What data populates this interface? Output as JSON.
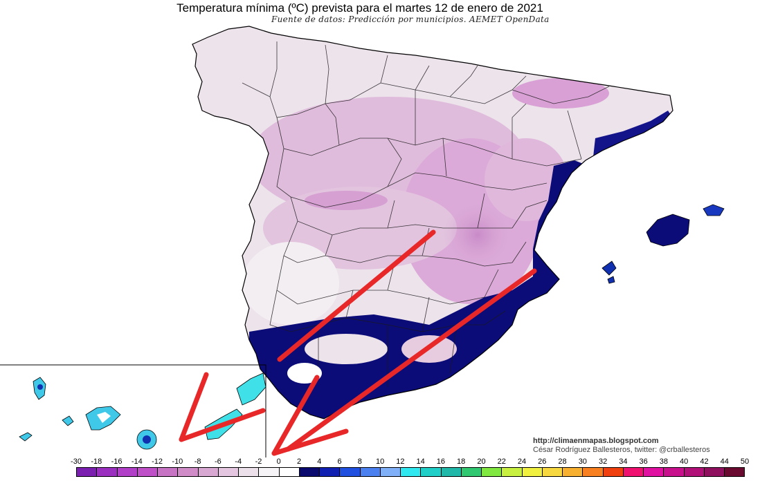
{
  "title": "Temperatura mínima (ºC) prevista para el martes 12 de enero de 2021",
  "subtitle": "Fuente de datos: Predicción por municipios. AEMET OpenData",
  "credit_site": "http://climaenmapas.blogspot.com",
  "credit_author": "César Rodríguez Ballesteros, twitter: @crballesteros",
  "legend": {
    "ticks": [
      "-30",
      "-18",
      "-16",
      "-14",
      "-12",
      "-10",
      "-8",
      "-6",
      "-4",
      "-2",
      "0",
      "2",
      "4",
      "6",
      "8",
      "10",
      "12",
      "14",
      "16",
      "18",
      "20",
      "22",
      "24",
      "26",
      "28",
      "30",
      "32",
      "34",
      "36",
      "38",
      "40",
      "42",
      "44",
      "50"
    ],
    "colors": [
      "#7a1fb0",
      "#9b30c0",
      "#b23fc8",
      "#c050c8",
      "#c874c4",
      "#d08cc6",
      "#d8a8d2",
      "#e4c6e0",
      "#ece0ea",
      "#f6f4f6",
      "#ffffff",
      "#0a0a6e",
      "#1020b0",
      "#2050e0",
      "#4a80f0",
      "#80b0f8",
      "#30e8f0",
      "#20d0c8",
      "#20b8a8",
      "#30c870",
      "#80e840",
      "#c8f040",
      "#f0f040",
      "#f8d840",
      "#f8b030",
      "#f88020",
      "#f04010",
      "#f01070",
      "#e010a0",
      "#c8108c",
      "#b01078",
      "#901060",
      "#6a0a30"
    ]
  },
  "colors": {
    "land_base": "#ede3eb",
    "cold_core": "#d49ad2",
    "cold_mid": "#e3c1e0",
    "warm_south": "#0c0c78",
    "canary": "#40e0e8",
    "arrow": "#e82828",
    "border": "#000000"
  }
}
